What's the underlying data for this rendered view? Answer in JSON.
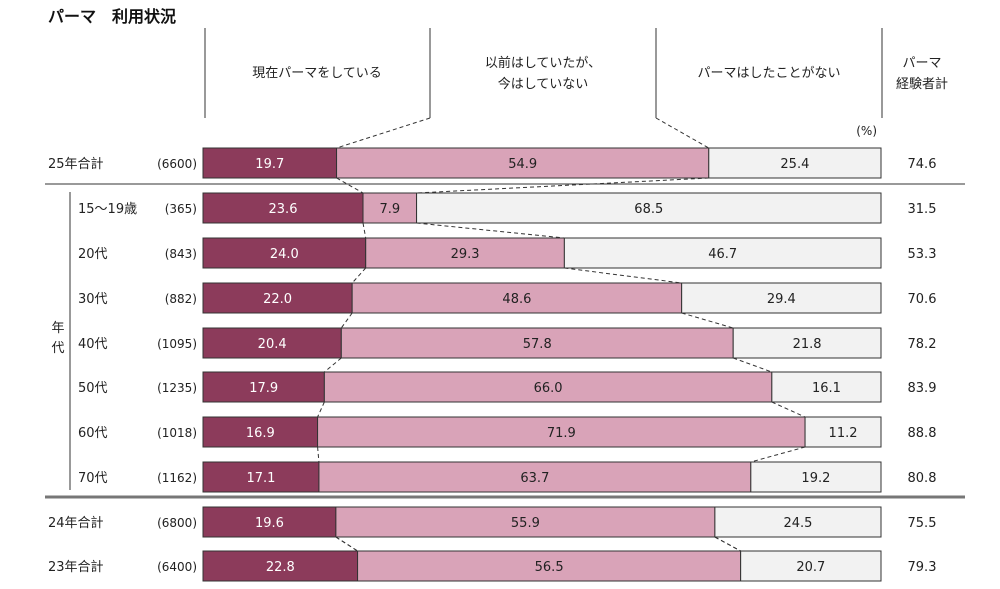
{
  "chart_data": {
    "type": "bar",
    "stacked": true,
    "orientation": "horizontal",
    "title": "パーマ　利用状況",
    "unit_label": "(%)",
    "side_label": "年代",
    "columns": {
      "current": "現在パーマをしている",
      "past": [
        "以前はしていたが、",
        "今はしていない"
      ],
      "never": "パーマはしたことがない",
      "total": [
        "パーマ",
        "経験者計"
      ]
    },
    "series": [
      {
        "name": "現在パーマをしている",
        "color": "#8c3b5b"
      },
      {
        "name": "以前はしていたが、今はしていない",
        "color": "#d9a3b8"
      },
      {
        "name": "パーマはしたことがない",
        "color": "#f2f2f2"
      }
    ],
    "rows": [
      {
        "label": "25年合計",
        "n": "(6600)",
        "values": [
          "19.7",
          "54.9",
          "25.4"
        ],
        "total": "74.6",
        "group": "summary"
      },
      {
        "label": "15～19歳",
        "n": "(365)",
        "values": [
          "23.6",
          "7.9",
          "68.5"
        ],
        "total": "31.5",
        "group": "age"
      },
      {
        "label": "20代",
        "n": "(843)",
        "values": [
          "24.0",
          "29.3",
          "46.7"
        ],
        "total": "53.3",
        "group": "age"
      },
      {
        "label": "30代",
        "n": "(882)",
        "values": [
          "22.0",
          "48.6",
          "29.4"
        ],
        "total": "70.6",
        "group": "age"
      },
      {
        "label": "40代",
        "n": "(1095)",
        "values": [
          "20.4",
          "57.8",
          "21.8"
        ],
        "total": "78.2",
        "group": "age"
      },
      {
        "label": "50代",
        "n": "(1235)",
        "values": [
          "17.9",
          "66.0",
          "16.1"
        ],
        "total": "83.9",
        "group": "age"
      },
      {
        "label": "60代",
        "n": "(1018)",
        "values": [
          "16.9",
          "71.9",
          "11.2"
        ],
        "total": "88.8",
        "group": "age"
      },
      {
        "label": "70代",
        "n": "(1162)",
        "values": [
          "17.1",
          "63.7",
          "19.2"
        ],
        "total": "80.8",
        "group": "age"
      },
      {
        "label": "24年合計",
        "n": "(6800)",
        "values": [
          "19.6",
          "55.9",
          "24.5"
        ],
        "total": "75.5",
        "group": "history"
      },
      {
        "label": "23年合計",
        "n": "(6400)",
        "values": [
          "22.8",
          "56.5",
          "20.7"
        ],
        "total": "79.3",
        "group": "history"
      }
    ]
  }
}
